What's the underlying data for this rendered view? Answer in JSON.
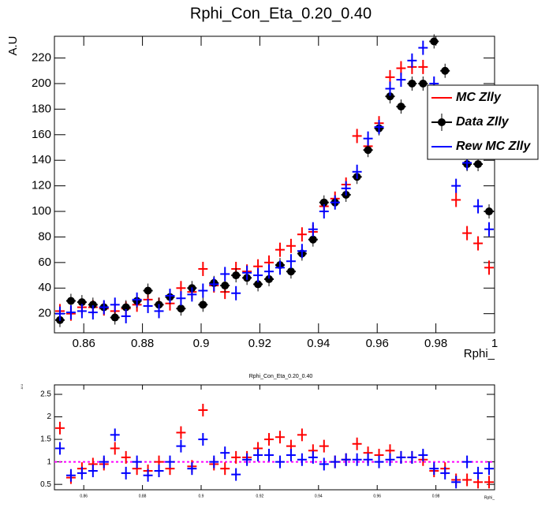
{
  "chart_data": [
    {
      "type": "scatter",
      "title": "Rphi_Con_Eta_0.20_0.40",
      "x_label": "Rphi_",
      "y_label": "A.U",
      "x": [
        0.851875,
        0.855625,
        0.859375,
        0.863125,
        0.866875,
        0.870625,
        0.874375,
        0.878125,
        0.881875,
        0.885625,
        0.889375,
        0.893125,
        0.896875,
        0.900625,
        0.904375,
        0.908125,
        0.911875,
        0.915625,
        0.919375,
        0.923125,
        0.926875,
        0.930625,
        0.934375,
        0.938125,
        0.941875,
        0.945625,
        0.949375,
        0.953125,
        0.956875,
        0.960625,
        0.964375,
        0.968125,
        0.971875,
        0.975625,
        0.979375,
        0.983125,
        0.986875,
        0.990625,
        0.994375,
        0.998125
      ],
      "series": [
        {
          "name": "MC Zlly",
          "color": "#ff0000",
          "marker": "cross",
          "values": [
            22,
            20,
            25,
            25,
            24,
            22,
            24,
            27,
            31,
            27,
            28,
            40,
            37,
            55,
            42,
            37,
            55,
            53,
            57,
            60,
            70,
            73,
            82,
            84,
            104,
            110,
            121,
            159,
            151,
            169,
            205,
            212,
            213,
            213,
            190,
            191,
            109,
            83,
            75,
            56
          ]
        },
        {
          "name": "Data Zlly",
          "color": "#000000",
          "marker": "circle",
          "values": [
            15,
            30,
            29,
            27,
            25,
            17,
            25,
            30,
            38,
            27,
            33,
            24,
            40,
            27,
            44,
            42,
            50,
            48,
            43,
            47,
            58,
            53,
            67,
            78,
            107,
            107,
            113,
            127,
            148,
            165,
            190,
            182,
            200,
            200,
            233,
            210,
            170,
            137,
            137,
            100
          ]
        },
        {
          "name": "Rew MC Zlly",
          "color": "#0000ff",
          "marker": "cross",
          "values": [
            20,
            21,
            22,
            21,
            25,
            27,
            18,
            31,
            26,
            22,
            34,
            32,
            35,
            38,
            43,
            51,
            36,
            52,
            50,
            53,
            56,
            61,
            69,
            86,
            100,
            107,
            118,
            131,
            157,
            166,
            196,
            203,
            218,
            228,
            200,
            160,
            120,
            138,
            104,
            86
          ]
        }
      ],
      "xlim": [
        0.85,
        1.0
      ],
      "xticks": [
        0.86,
        0.88,
        0.9,
        0.92,
        0.94,
        0.96,
        0.98,
        1
      ],
      "ylim": [
        5,
        237
      ],
      "yticks": [
        20,
        40,
        60,
        80,
        100,
        120,
        140,
        160,
        180,
        200,
        220
      ]
    },
    {
      "type": "scatter",
      "title": "Rphi_Con_Eta_0.20_0.40",
      "x_label": "Rphi_",
      "y_label": "A.U",
      "x": [
        0.851875,
        0.855625,
        0.859375,
        0.863125,
        0.866875,
        0.870625,
        0.874375,
        0.878125,
        0.881875,
        0.885625,
        0.889375,
        0.893125,
        0.896875,
        0.900625,
        0.904375,
        0.908125,
        0.911875,
        0.915625,
        0.919375,
        0.923125,
        0.926875,
        0.930625,
        0.934375,
        0.938125,
        0.941875,
        0.945625,
        0.949375,
        0.953125,
        0.956875,
        0.960625,
        0.964375,
        0.968125,
        0.971875,
        0.975625,
        0.979375,
        0.983125,
        0.986875,
        0.990625,
        0.994375,
        0.998125
      ],
      "series": [
        {
          "color": "#ff0000",
          "marker": "cross",
          "values": [
            1.75,
            0.65,
            0.85,
            0.95,
            0.95,
            1.3,
            1.1,
            0.85,
            0.8,
            1.0,
            0.85,
            1.65,
            0.9,
            2.15,
            0.95,
            0.85,
            1.1,
            1.1,
            1.3,
            1.5,
            1.55,
            1.35,
            1.6,
            1.25,
            1.35,
            1.0,
            1.05,
            1.4,
            1.2,
            1.15,
            1.25,
            1.1,
            1.1,
            1.05,
            0.8,
            0.85,
            0.6,
            0.6,
            0.55,
            0.55
          ]
        },
        {
          "color": "#0000ff",
          "marker": "cross",
          "values": [
            1.3,
            0.7,
            0.75,
            0.8,
            1.0,
            1.6,
            0.75,
            1.0,
            0.7,
            0.8,
            1.0,
            1.35,
            0.85,
            1.5,
            1.0,
            1.2,
            0.72,
            1.05,
            1.15,
            1.15,
            1.0,
            1.15,
            1.05,
            1.1,
            0.95,
            1.0,
            1.05,
            1.05,
            1.05,
            1.0,
            1.05,
            1.1,
            1.1,
            1.15,
            0.85,
            0.75,
            0.55,
            1.0,
            0.75,
            0.85
          ]
        }
      ],
      "reference_line": 1,
      "reference_color": "#ff00ff",
      "xlim": [
        0.85,
        1.0
      ],
      "xticks": [
        0.86,
        0.88,
        0.9,
        0.92,
        0.94,
        0.96,
        0.98
      ],
      "ylim": [
        0.38,
        2.71
      ],
      "yticks": [
        0.5,
        1,
        1.5,
        2,
        2.5
      ]
    }
  ]
}
